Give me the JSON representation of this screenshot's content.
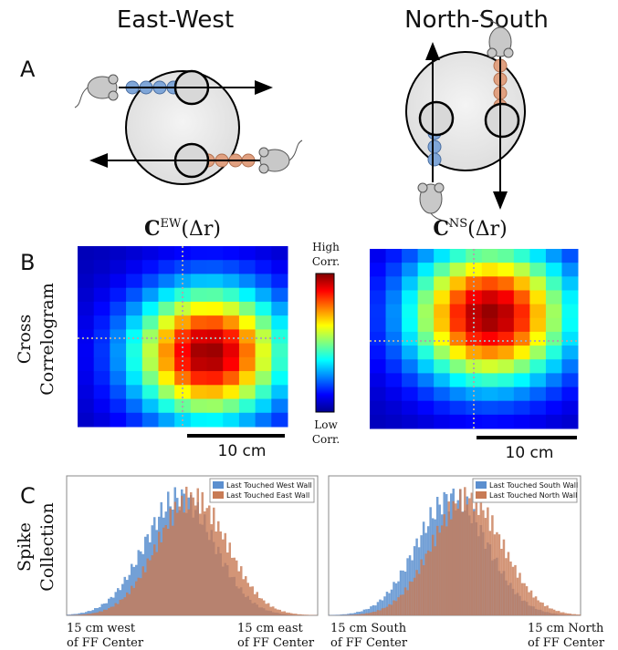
{
  "headers": {
    "east_west": "East-West",
    "north_south": "North-South"
  },
  "panel_labels": {
    "a": "A",
    "b": "B",
    "c": "C"
  },
  "panel_b": {
    "ew_title": {
      "symbol": "C",
      "superscript": "EW",
      "argument": "(Δr)"
    },
    "ns_title": {
      "symbol": "C",
      "superscript": "NS",
      "argument": "(Δr)"
    },
    "row_label": [
      "Cross",
      "Correlogram"
    ],
    "colorbar_high": [
      "High",
      "Corr."
    ],
    "colorbar_low": [
      "Low",
      "Corr."
    ],
    "scale_bar_ew": "10 cm",
    "scale_bar_ns": "10 cm"
  },
  "panel_c": {
    "row_label": [
      "Spike",
      "Collection"
    ],
    "ew_legend": [
      "Last Touched West Wall",
      "Last Touched East Wall"
    ],
    "ns_legend": [
      "Last Touched South Wall",
      "Last Touched North Wall"
    ],
    "ew_x_left": [
      "15 cm west",
      "of FF Center"
    ],
    "ew_x_right": [
      "15 cm east",
      "of FF Center"
    ],
    "ns_x_left": [
      "15 cm South",
      "of FF Center"
    ],
    "ns_x_right": [
      "15 cm North",
      "of FF Center"
    ]
  }
}
